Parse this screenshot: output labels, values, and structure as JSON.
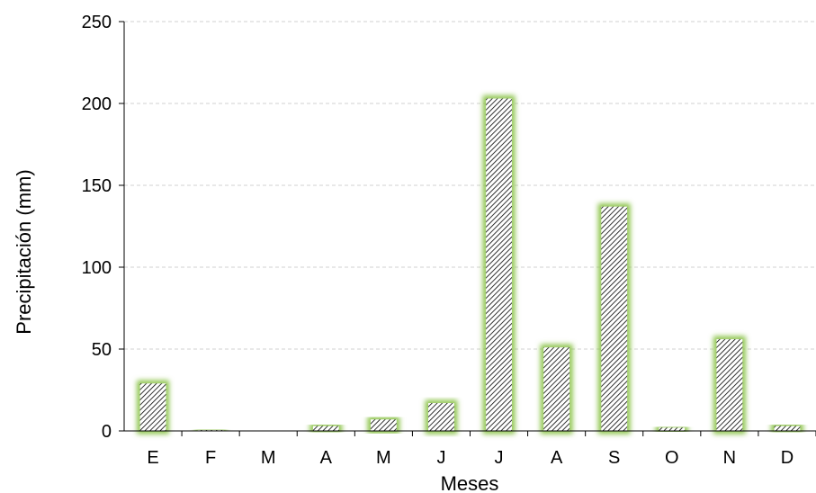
{
  "chart_data": {
    "type": "bar",
    "categories": [
      "E",
      "F",
      "M",
      "A",
      "M",
      "J",
      "J",
      "A",
      "S",
      "O",
      "N",
      "D"
    ],
    "values": [
      29,
      0.5,
      0,
      3,
      7,
      17,
      203,
      51,
      137,
      2,
      56,
      3
    ],
    "xlabel": "Meses",
    "ylabel": "Precipitación (mm)",
    "ylim": [
      0,
      250
    ],
    "yticks": [
      "0",
      "50",
      "100",
      "150",
      "200",
      "250"
    ],
    "grid": true,
    "legend": "none"
  },
  "colors": {
    "bar_glow": "#8bc34a",
    "bar_hatch": "#000000",
    "grid": "#d0d0d0",
    "axis": "#000000"
  }
}
